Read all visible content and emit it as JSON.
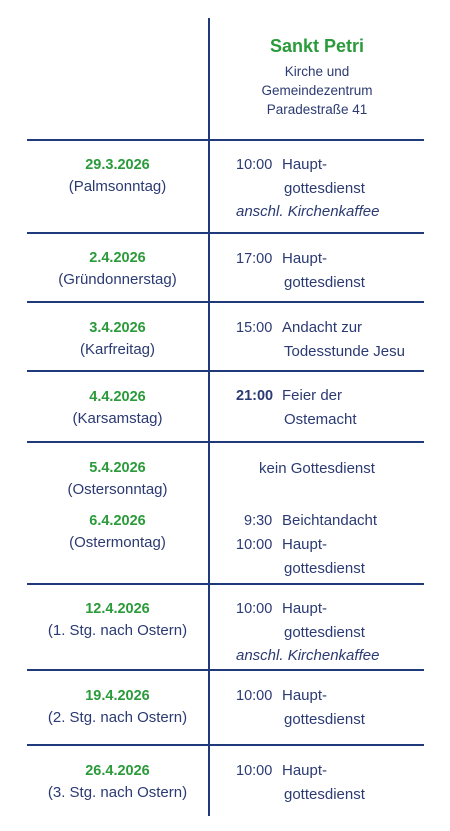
{
  "header": {
    "name": "Sankt Petri",
    "line1": "Kirche und",
    "line2": "Gemeindezentrum",
    "line3": "Paradestraße 41"
  },
  "rows": [
    {
      "date": "29.3.2026",
      "day": "(Palmsonntag)",
      "time": "10:00",
      "service1": "Haupt-",
      "service2": "gottesdienst",
      "note": "anschl. Kirchenkaffee"
    },
    {
      "date": "2.4.2026",
      "day": "(Gründonnerstag)",
      "time": "17:00",
      "service1": "Haupt-",
      "service2": "gottesdienst"
    },
    {
      "date": "3.4.2026",
      "day": "(Karfreitag)",
      "time": "15:00",
      "service1": "Andacht zur",
      "service2": "Todesstunde Jesu"
    },
    {
      "date": "4.4.2026",
      "day": "(Karsamstag)",
      "time": "21:00",
      "service1": "Feier der",
      "service2": "Ostemacht"
    },
    {
      "date": "5.4.2026",
      "day": "(Ostersonntag)",
      "service1": "kein Gottesdienst"
    },
    {
      "date": "6.4.2026",
      "day": "(Ostermontag)",
      "time": "9:30",
      "service1": "Beichtandacht",
      "time2": "10:00",
      "service2": "Haupt-",
      "service3": "gottesdienst"
    },
    {
      "date": "12.4.2026",
      "day": "(1. Stg. nach Ostern)",
      "time": "10:00",
      "service1": "Haupt-",
      "service2": "gottesdienst",
      "note": "anschl. Kirchenkaffee"
    },
    {
      "date": "19.4.2026",
      "day": "(2. Stg. nach Ostern)",
      "time": "10:00",
      "service1": "Haupt-",
      "service2": "gottesdienst"
    },
    {
      "date": "26.4.2026",
      "day": "(3. Stg. nach Ostern)",
      "time": "10:00",
      "service1": "Haupt-",
      "service2": "gottesdienst"
    }
  ]
}
